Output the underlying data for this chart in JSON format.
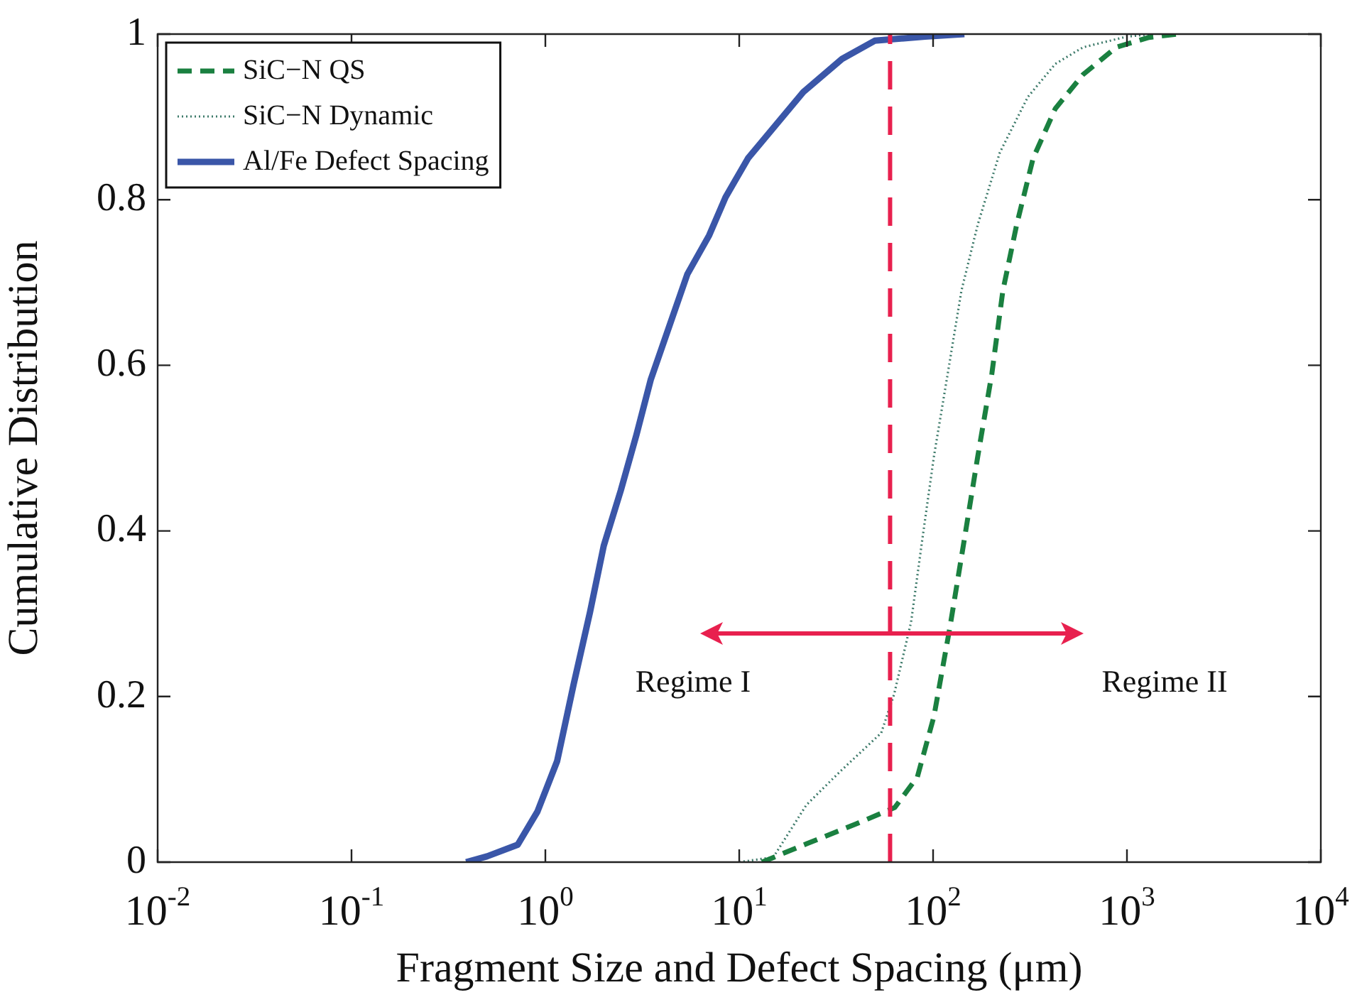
{
  "chart_data": {
    "type": "line",
    "xlabel": "Fragment Size and Defect Spacing (μm)",
    "ylabel": "Cumulative Distribution",
    "log": "x",
    "xlim": [
      0.01,
      10000
    ],
    "xticks": [
      {
        "value": 0.01,
        "label": "10$^{-2}$"
      },
      {
        "value": 0.1,
        "label": "10$^{-1}$"
      },
      {
        "value": 1,
        "label": "10$^{0}$"
      },
      {
        "value": 10,
        "label": "10$^{1}$"
      },
      {
        "value": 100,
        "label": "10$^{2}$"
      },
      {
        "value": 1000,
        "label": "10$^{3}$"
      },
      {
        "value": 10000,
        "label": "10$^{4}$"
      }
    ],
    "ylim": [
      0,
      1
    ],
    "yticks": [
      0,
      0.2,
      0.4,
      0.6,
      0.8,
      1
    ],
    "grid": false,
    "legend": "top left",
    "series": [
      {
        "name": "SiC−N QS",
        "color": "#1a8040",
        "line_style": "dashed",
        "x": [
          13.1,
          22.2,
          40,
          63.5,
          83,
          101,
          122,
          145,
          170,
          201,
          229,
          270,
          328,
          427,
          593,
          880,
          1300,
          1820
        ],
        "values": [
          0,
          0.022,
          0.046,
          0.066,
          0.103,
          0.176,
          0.283,
          0.39,
          0.49,
          0.59,
          0.69,
          0.77,
          0.85,
          0.91,
          0.951,
          0.984,
          0.996,
          1
        ]
      },
      {
        "name": "SiC−N Dynamic",
        "color": "#3d7a6a",
        "line_style": "dotted",
        "x": [
          10,
          15,
          22.2,
          33,
          54,
          63,
          77,
          88,
          101,
          119,
          140,
          170,
          221,
          308,
          427,
          593,
          1000,
          1380
        ],
        "values": [
          0,
          0.006,
          0.069,
          0.109,
          0.156,
          0.203,
          0.29,
          0.39,
          0.49,
          0.59,
          0.69,
          0.77,
          0.857,
          0.924,
          0.964,
          0.984,
          0.997,
          1
        ]
      },
      {
        "name": "Al/Fe Defect Spacing",
        "color": "#3a56a8",
        "line_style": "solid",
        "x": [
          0.39,
          0.5,
          0.72,
          0.91,
          1.15,
          1.4,
          1.7,
          2.0,
          2.45,
          2.95,
          3.5,
          4.4,
          5.4,
          7.0,
          8.5,
          11.1,
          15.4,
          21.4,
          33.9,
          50,
          91,
          145
        ],
        "values": [
          0,
          0.007,
          0.021,
          0.061,
          0.122,
          0.215,
          0.302,
          0.382,
          0.449,
          0.516,
          0.583,
          0.65,
          0.71,
          0.757,
          0.803,
          0.85,
          0.89,
          0.93,
          0.97,
          0.992,
          0.997,
          1
        ]
      }
    ],
    "ref_lines": [
      {
        "axis": "x",
        "value": 60,
        "color": "#e8204e",
        "line_style": "dashed"
      }
    ],
    "annotations": [
      "Regime I",
      "Regime II"
    ]
  }
}
